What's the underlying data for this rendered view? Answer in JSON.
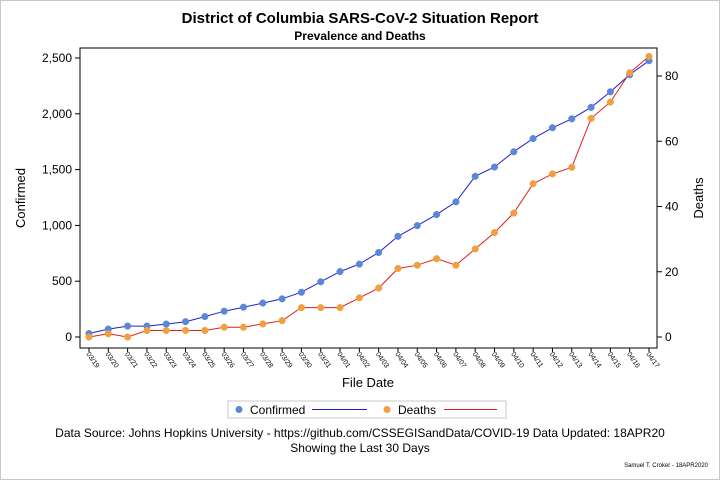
{
  "titles": {
    "title": "District of Columbia SARS-CoV-2 Situation Report",
    "subtitle": "Prevalence and Deaths"
  },
  "footnotes": {
    "line1": "Data Source: Johns Hopkins University - https://github.com/CSSEGISandData/COVID-19 Data Updated: 18APR20",
    "line2": "Showing the Last 30 Days",
    "signature": "Samuel T. Croker - 18APR2020"
  },
  "colors": {
    "confirmed_line": "#1f1fd1",
    "confirmed_marker": "#5b87d6",
    "deaths_line": "#e0201a",
    "deaths_marker": "#f0a040",
    "axis": "#000000",
    "frame": "#c8c8c8"
  },
  "chart_data": {
    "type": "line",
    "title": "District of Columbia SARS-CoV-2 Situation Report",
    "subtitle": "Prevalence and Deaths",
    "xlabel": "File Date",
    "ylabel": "Confirmed",
    "y2label": "Deaths",
    "categories": [
      "03/19",
      "03/20",
      "03/21",
      "03/22",
      "03/23",
      "03/24",
      "03/25",
      "03/26",
      "03/27",
      "03/28",
      "03/29",
      "03/30",
      "03/31",
      "04/01",
      "04/02",
      "04/03",
      "04/04",
      "04/05",
      "04/06",
      "04/07",
      "04/08",
      "04/09",
      "04/10",
      "04/11",
      "04/12",
      "04/13",
      "04/14",
      "04/15",
      "04/16",
      "04/17"
    ],
    "ylim": [
      0,
      2500
    ],
    "yticks": [
      0,
      500,
      1000,
      1500,
      2000,
      2500
    ],
    "ytick_labels": [
      "0",
      "500",
      "1,000",
      "1,500",
      "2,000",
      "2,500"
    ],
    "y2lim": [
      0,
      80
    ],
    "y2ticks": [
      0,
      20,
      40,
      60,
      80
    ],
    "y2tick_labels": [
      "0",
      "20",
      "40",
      "60",
      "80"
    ],
    "series": [
      {
        "name": "Confirmed",
        "axis": "left",
        "values": [
          31,
          71,
          98,
          98,
          116,
          137,
          183,
          231,
          267,
          304,
          342,
          401,
          495,
          586,
          653,
          757,
          902,
          998,
          1097,
          1211,
          1440,
          1523,
          1660,
          1778,
          1875,
          1955,
          2058,
          2197,
          2350,
          2476
        ]
      },
      {
        "name": "Deaths",
        "axis": "right",
        "values": [
          0,
          1,
          0,
          2,
          2,
          2,
          2,
          3,
          3,
          4,
          5,
          9,
          9,
          9,
          12,
          15,
          21,
          22,
          24,
          22,
          27,
          32,
          38,
          47,
          50,
          52,
          67,
          72,
          81,
          86
        ]
      }
    ],
    "legend": {
      "position": "bottom",
      "entries": [
        "Confirmed",
        "Deaths"
      ]
    },
    "grid": false
  }
}
